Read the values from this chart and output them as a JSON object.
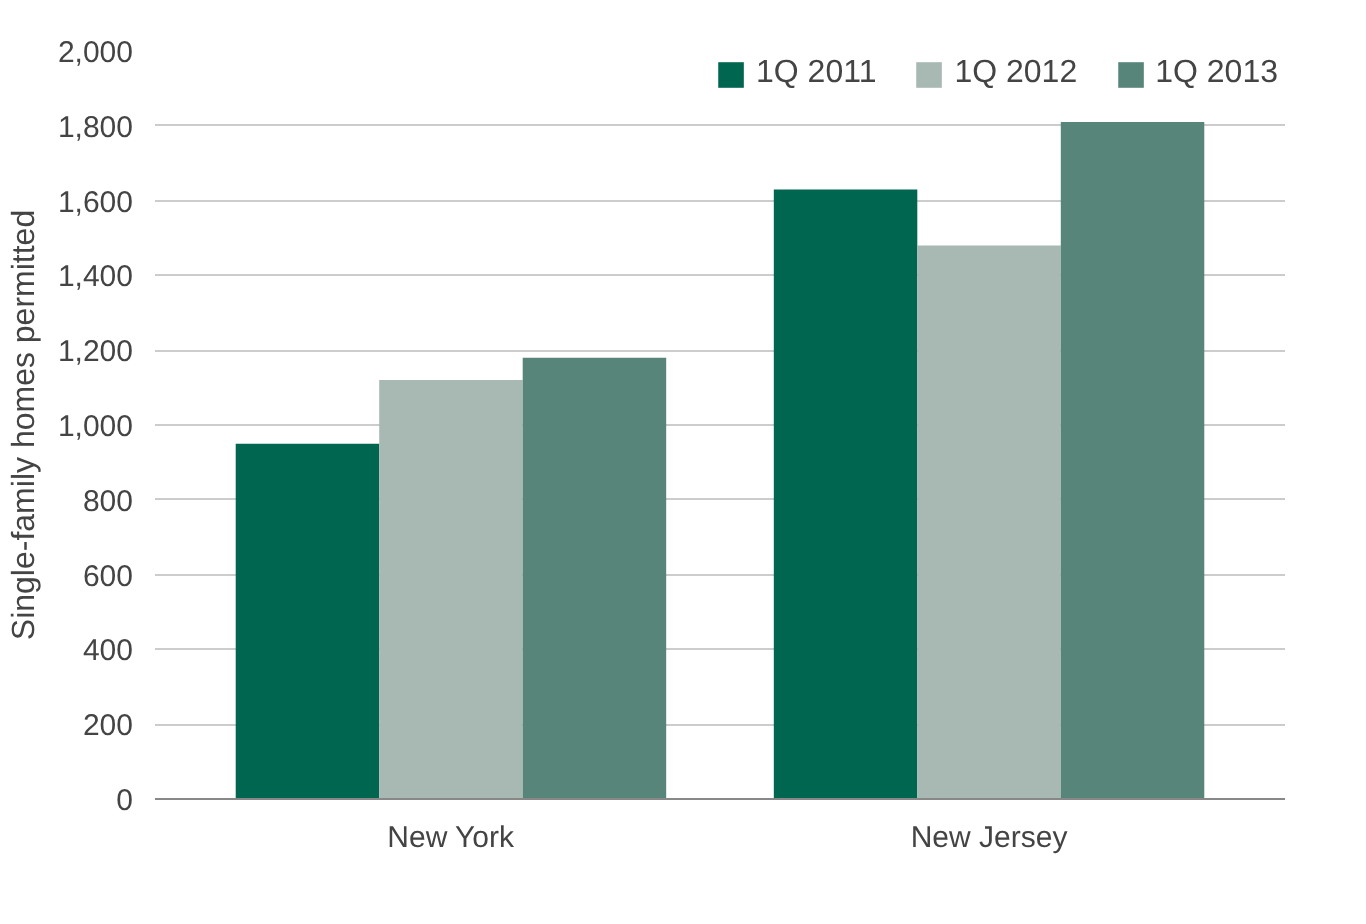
{
  "chart_data": {
    "type": "bar",
    "ylabel": "Single-family homes permitted",
    "categories": [
      "New York",
      "New Jersey"
    ],
    "series": [
      {
        "name": "1Q 2011",
        "color": "#00664f",
        "values": [
          950,
          1630
        ]
      },
      {
        "name": "1Q 2012",
        "color": "#a8b8b2",
        "values": [
          1120,
          1480
        ]
      },
      {
        "name": "1Q 2013",
        "color": "#58857a",
        "values": [
          1180,
          1810
        ]
      }
    ],
    "ylim": [
      0,
      2000
    ],
    "yticks": [
      0,
      200,
      400,
      600,
      800,
      {
        "value": 1000,
        "label": "1,000"
      },
      {
        "value": 1200,
        "label": "1,200"
      },
      {
        "value": 1400,
        "label": "1,400"
      },
      {
        "value": 1600,
        "label": "1,600"
      },
      {
        "value": 1800,
        "label": "1,800"
      },
      {
        "value": 2000,
        "label": "2,000"
      }
    ],
    "grid": "y",
    "legend": "top right"
  }
}
